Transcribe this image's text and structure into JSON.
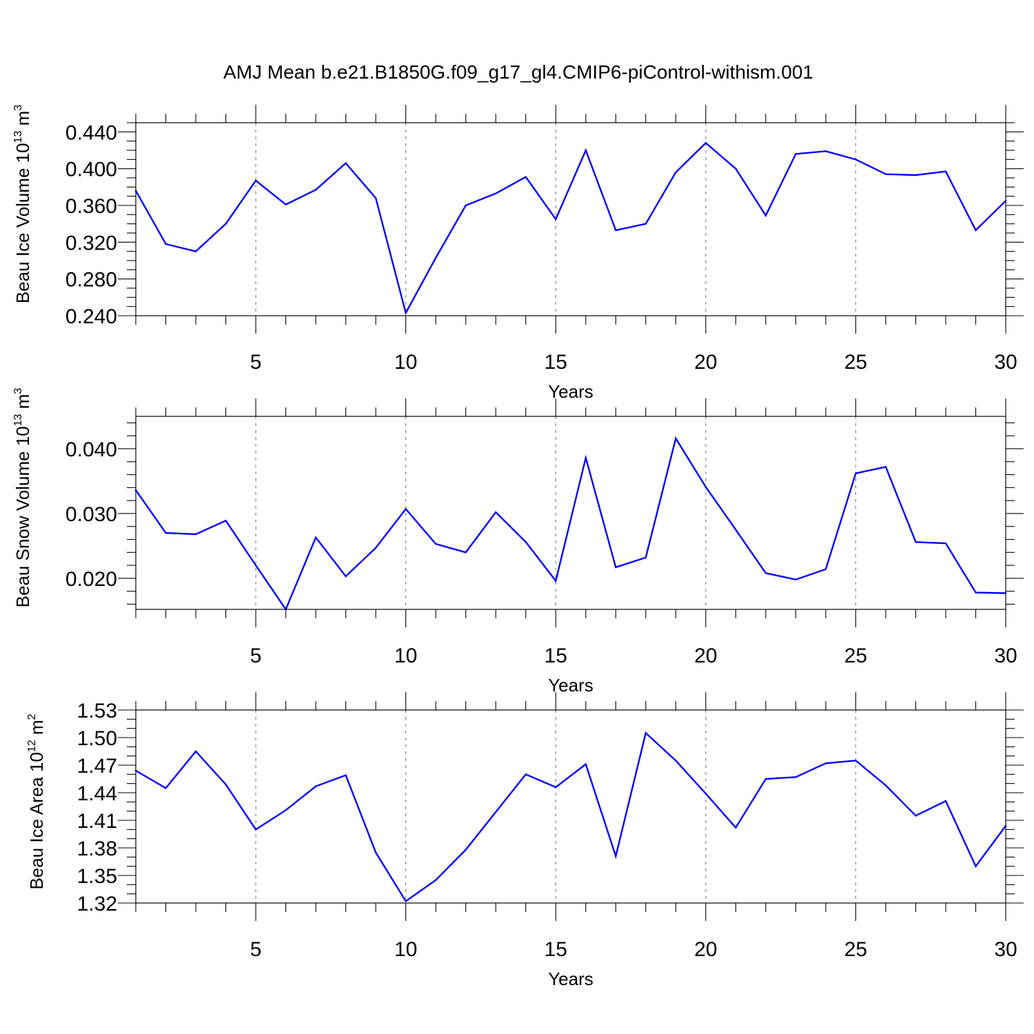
{
  "title": "AMJ Mean b.e21.B1850G.f09_g17_gl4.CMIP6-piControl-withism.001",
  "colors": {
    "line": "#0000ff",
    "grid": "#777777",
    "axis": "#000000"
  },
  "chart_data": [
    {
      "type": "line",
      "ylabel": "Beau Ice Volume 10",
      "ylabel_exp": "13",
      "ylabel_unit": " m",
      "ylabel_unit_exp": "3",
      "xlabel": "Years",
      "xlim": [
        1,
        30
      ],
      "ylim": [
        0.24,
        0.45
      ],
      "yticks": [
        0.24,
        0.28,
        0.32,
        0.36,
        0.4,
        0.44
      ],
      "yticklabels": [
        "0.240",
        "0.280",
        "0.320",
        "0.360",
        "0.400",
        "0.440"
      ],
      "yminor_step": 0.01,
      "xticks": [
        5,
        10,
        15,
        20,
        25,
        30
      ],
      "xticklabels": [
        "5",
        "10",
        "15",
        "20",
        "25",
        "30"
      ],
      "grid_x": [
        5,
        10,
        15,
        20,
        25
      ],
      "x": [
        1,
        2,
        3,
        4,
        5,
        6,
        7,
        8,
        9,
        10,
        11,
        12,
        13,
        14,
        15,
        16,
        17,
        18,
        19,
        20,
        21,
        22,
        23,
        24,
        25,
        26,
        27,
        28,
        29,
        30
      ],
      "y": [
        0.376,
        0.318,
        0.31,
        0.34,
        0.387,
        0.361,
        0.377,
        0.406,
        0.368,
        0.243,
        0.303,
        0.36,
        0.373,
        0.391,
        0.345,
        0.42,
        0.333,
        0.34,
        0.396,
        0.428,
        0.4,
        0.349,
        0.416,
        0.419,
        0.41,
        0.394,
        0.393,
        0.397,
        0.333,
        0.365
      ]
    },
    {
      "type": "line",
      "ylabel": "Beau Snow Volume 10",
      "ylabel_exp": "13",
      "ylabel_unit": " m",
      "ylabel_unit_exp": "3",
      "xlabel": "Years",
      "xlim": [
        1,
        30
      ],
      "ylim": [
        0.0152,
        0.045
      ],
      "yticks": [
        0.02,
        0.03,
        0.04
      ],
      "yticklabels": [
        "0.020",
        "0.030",
        "0.040"
      ],
      "yminor_step": 0.002,
      "xticks": [
        5,
        10,
        15,
        20,
        25,
        30
      ],
      "xticklabels": [
        "5",
        "10",
        "15",
        "20",
        "25",
        "30"
      ],
      "grid_x": [
        5,
        10,
        15,
        20,
        25
      ],
      "x": [
        1,
        2,
        3,
        4,
        5,
        6,
        7,
        8,
        9,
        10,
        11,
        12,
        13,
        14,
        15,
        16,
        17,
        18,
        19,
        20,
        21,
        22,
        23,
        24,
        25,
        26,
        27,
        28,
        29,
        30
      ],
      "y": [
        0.0336,
        0.027,
        0.0268,
        0.0289,
        0.022,
        0.0152,
        0.0263,
        0.0203,
        0.0247,
        0.0307,
        0.0253,
        0.024,
        0.0302,
        0.0256,
        0.0196,
        0.0386,
        0.0217,
        0.0232,
        0.0416,
        0.0341,
        0.0275,
        0.0208,
        0.0198,
        0.0214,
        0.0362,
        0.0372,
        0.0256,
        0.0254,
        0.0178,
        0.0177
      ]
    },
    {
      "type": "line",
      "ylabel": "Beau Ice Area 10",
      "ylabel_exp": "12",
      "ylabel_unit": " m",
      "ylabel_unit_exp": "2",
      "xlabel": "Years",
      "xlim": [
        1,
        30
      ],
      "ylim": [
        1.32,
        1.53
      ],
      "yticks": [
        1.32,
        1.35,
        1.38,
        1.41,
        1.44,
        1.47,
        1.5,
        1.53
      ],
      "yticklabels": [
        "1.32",
        "1.35",
        "1.38",
        "1.41",
        "1.44",
        "1.47",
        "1.50",
        "1.53"
      ],
      "yminor_step": 0.01,
      "xticks": [
        5,
        10,
        15,
        20,
        25,
        30
      ],
      "xticklabels": [
        "5",
        "10",
        "15",
        "20",
        "25",
        "30"
      ],
      "grid_x": [
        5,
        10,
        15,
        20,
        25
      ],
      "x": [
        1,
        2,
        3,
        4,
        5,
        6,
        7,
        8,
        9,
        10,
        11,
        12,
        13,
        14,
        15,
        16,
        17,
        18,
        19,
        20,
        21,
        22,
        23,
        24,
        25,
        26,
        27,
        28,
        29,
        30
      ],
      "y": [
        1.464,
        1.445,
        1.485,
        1.449,
        1.4,
        1.421,
        1.447,
        1.459,
        1.375,
        1.322,
        1.345,
        1.378,
        1.419,
        1.46,
        1.446,
        1.471,
        1.371,
        1.505,
        1.475,
        1.439,
        1.402,
        1.455,
        1.457,
        1.472,
        1.475,
        1.448,
        1.415,
        1.431,
        1.36,
        1.404
      ]
    }
  ]
}
